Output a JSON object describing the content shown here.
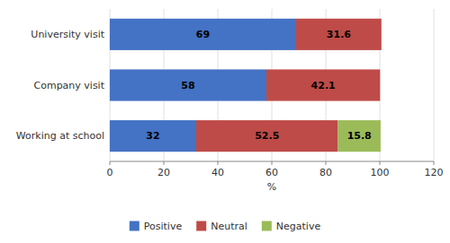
{
  "chart_data": {
    "type": "bar",
    "orientation": "horizontal",
    "stacked": true,
    "categories": [
      "Working at school",
      "Company visit",
      "University visit"
    ],
    "series": [
      {
        "name": "Positive",
        "color": "#4472C4",
        "values": [
          32,
          58,
          69
        ]
      },
      {
        "name": "Neutral",
        "color": "#BE4B48",
        "values": [
          52.5,
          42.1,
          31.6
        ]
      },
      {
        "name": "Negative",
        "color": "#9BBB59",
        "values": [
          15.8,
          0,
          0
        ]
      }
    ],
    "xlabel": "%",
    "xlim": [
      0,
      120
    ],
    "xticks": [
      0,
      20,
      40,
      60,
      80,
      100,
      120
    ],
    "grid": true,
    "data_labels": true,
    "legend": "bottom"
  }
}
